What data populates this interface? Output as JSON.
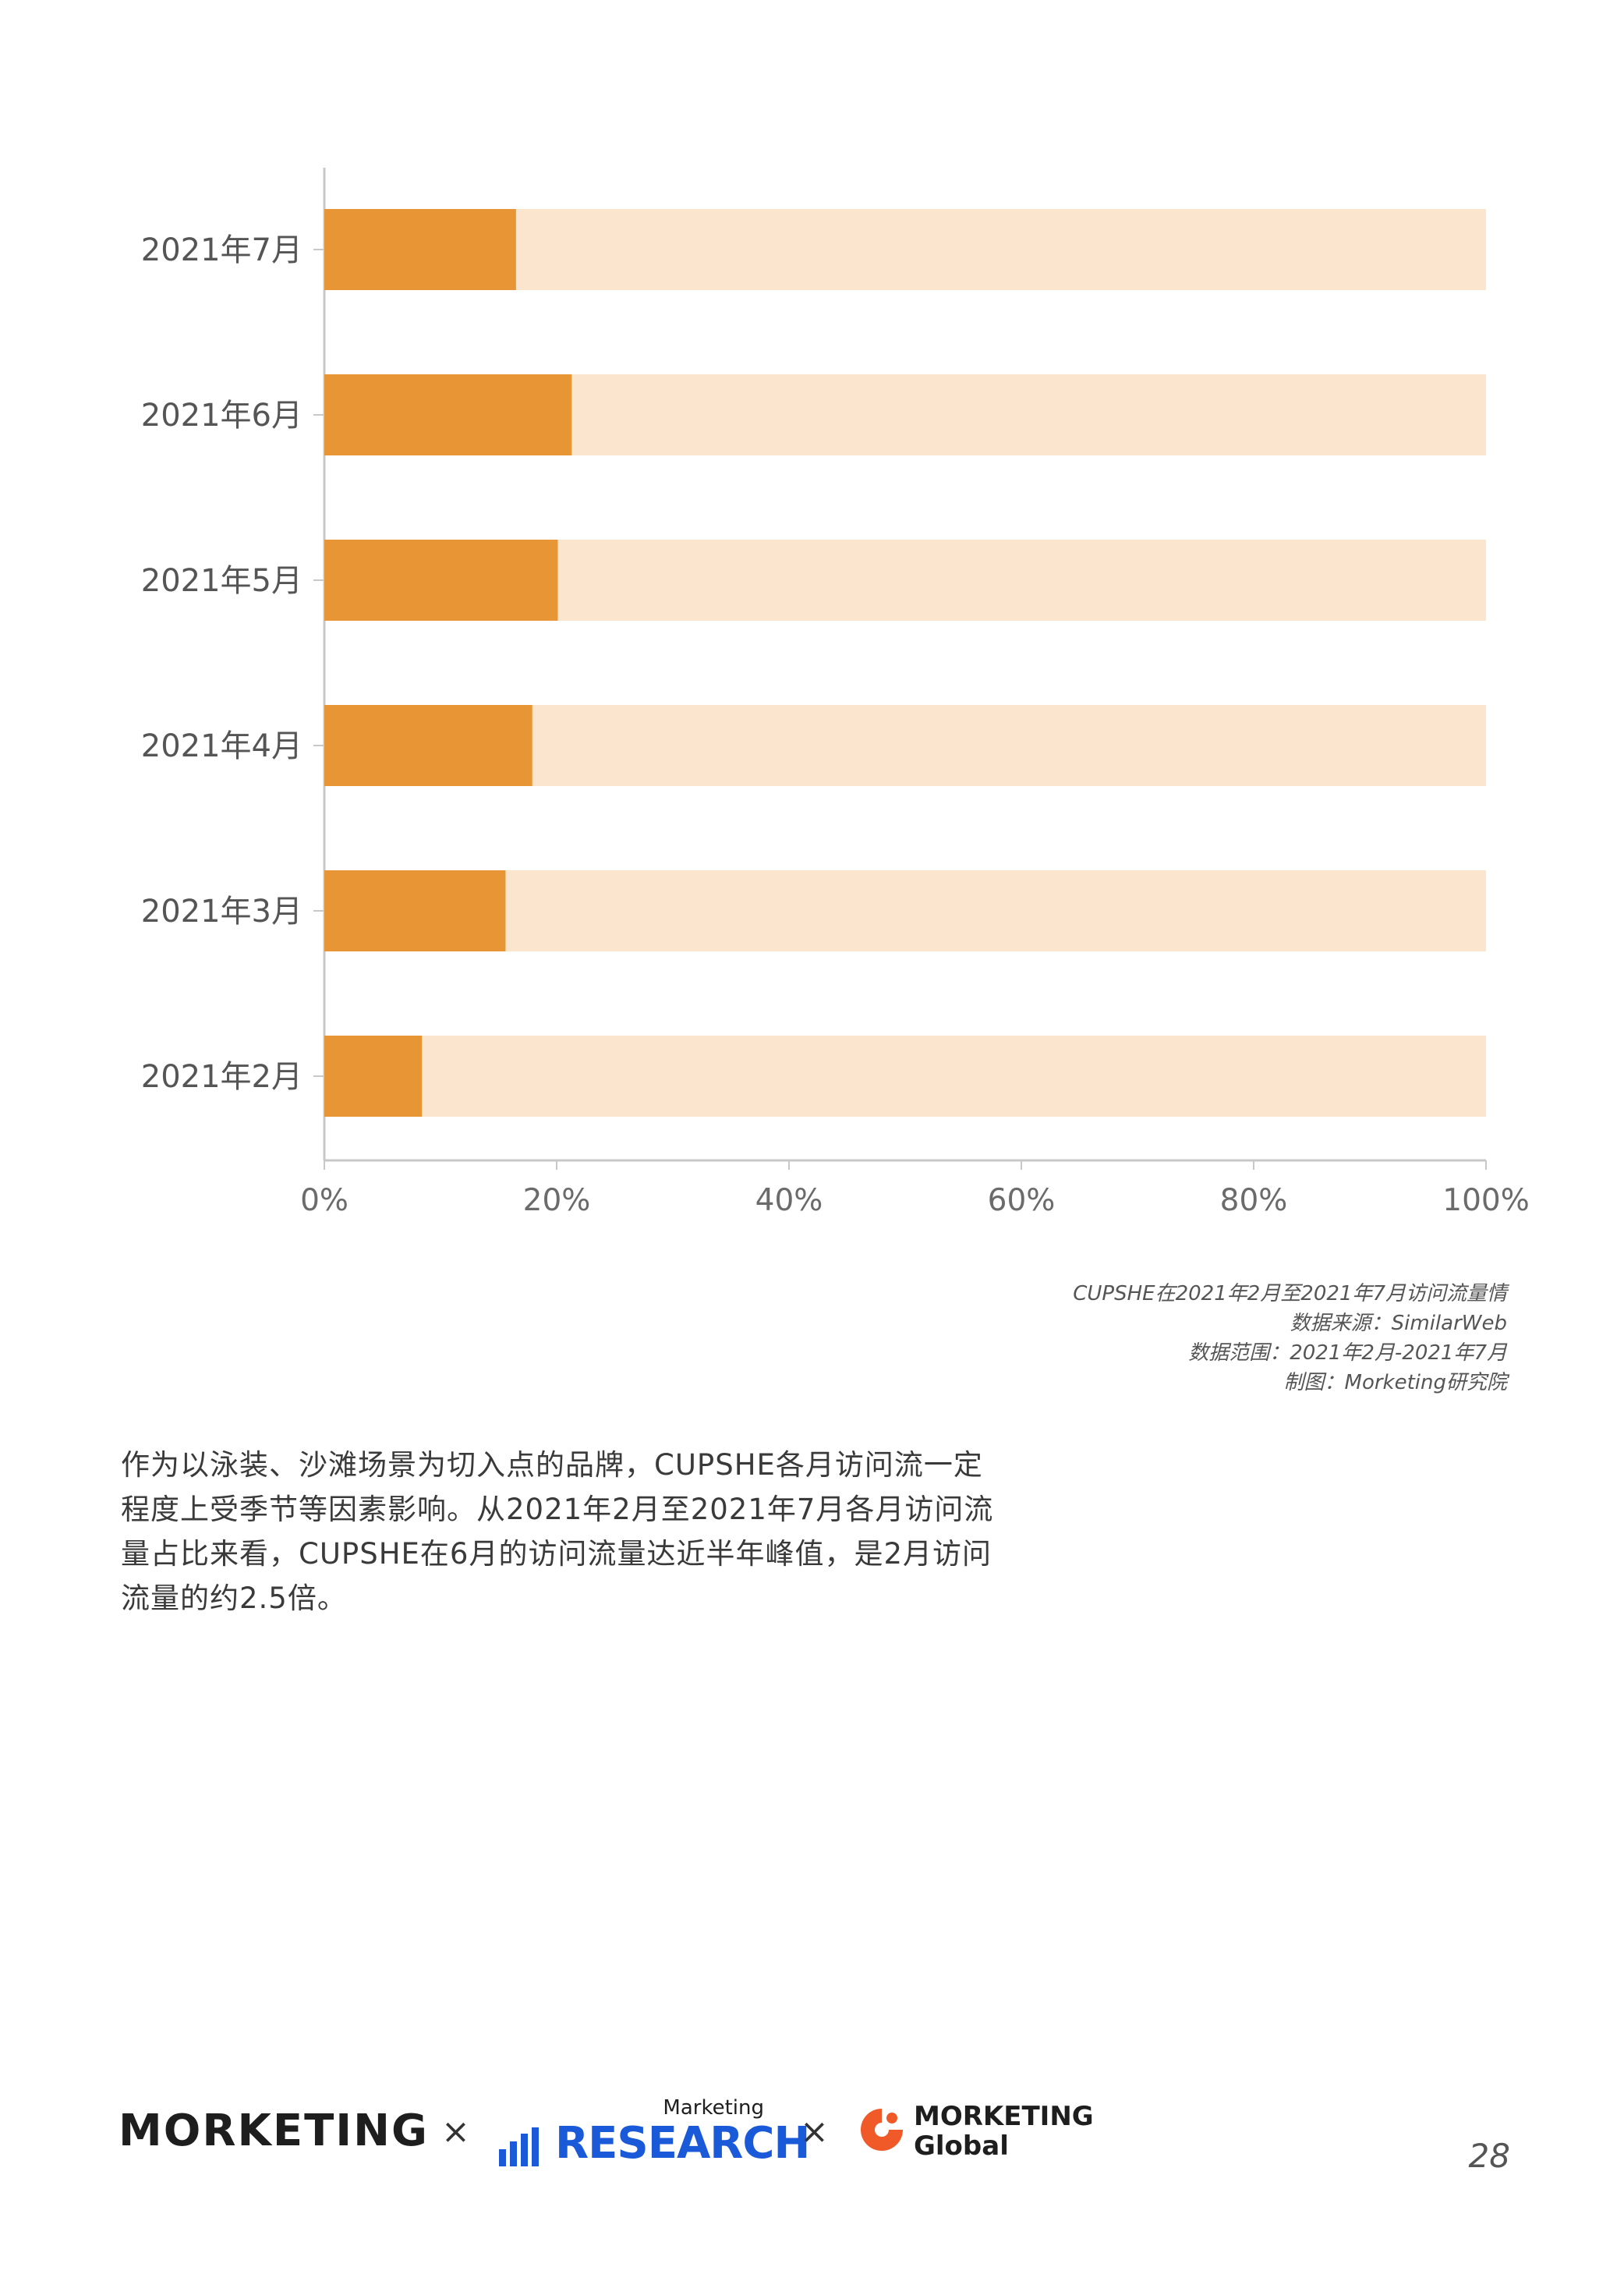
{
  "chart_data": {
    "type": "bar",
    "orientation": "horizontal",
    "stacked_percent": true,
    "categories": [
      "2021年7月",
      "2021年6月",
      "2021年5月",
      "2021年4月",
      "2021年3月",
      "2021年2月"
    ],
    "values": [
      16.5,
      21.3,
      20.1,
      17.9,
      15.6,
      8.4
    ],
    "xlim": [
      0,
      100
    ],
    "x_ticks": [
      "0%",
      "20%",
      "40%",
      "60%",
      "80%",
      "100%"
    ],
    "x_tick_values": [
      0,
      20,
      40,
      60,
      80,
      100
    ],
    "grid": false,
    "colors": {
      "value": "#e89535",
      "remainder": "#fbe5cf",
      "axis": "#c8c8c8"
    }
  },
  "caption": {
    "title": "CUPSHE在2021年2月至2021年7月访问流量情",
    "source": "数据来源：SimilarWeb",
    "range": "数据范围：2021年2月-2021年7月",
    "maker": "制图：Morketing研究院"
  },
  "body_text": "作为以泳装、沙滩场景为切入点的品牌，CUPSHE各月访问流一定程度上受季节等因素影响。从2021年2月至2021年7月各月访问流量占比来看，CUPSHE在6月的访问流量达近半年峰值，是2月访问流量的约2.5倍。",
  "footer": {
    "logo_morketing": "MORKETING",
    "times_1": "×",
    "research_small": "Marketing",
    "research_word": "RESEARCH",
    "times_2": "×",
    "global_line1": "MORKETING",
    "global_line2": "Global",
    "page_number": "28"
  }
}
